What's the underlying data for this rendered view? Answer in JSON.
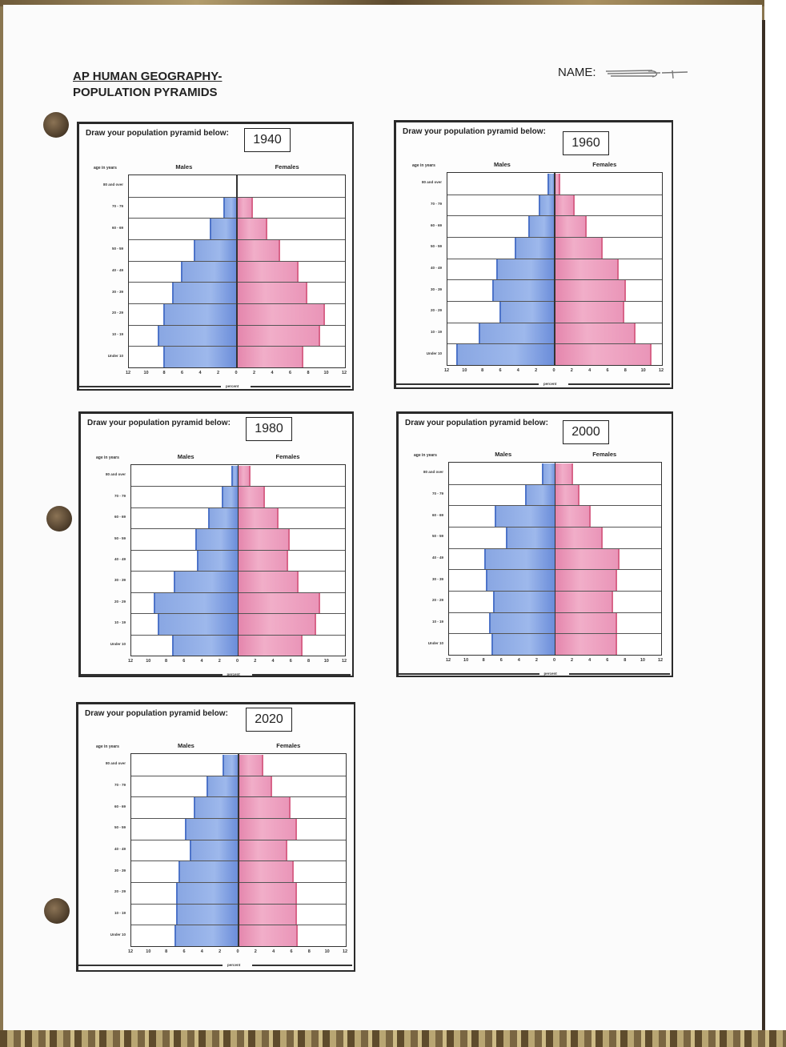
{
  "worksheet": {
    "title_line1": "AP HUMAN GEOGRAPHY-",
    "title_line2": "POPULATION PYRAMIDS",
    "name_label": "NAME:"
  },
  "panel_common": {
    "prompt": "Draw your population pyramid below:",
    "age_header": "age in years",
    "males_label": "Males",
    "females_label": "Females",
    "x_label": "percent",
    "age_groups": [
      "80 and over",
      "70 - 79",
      "60 - 69",
      "50 - 59",
      "40 - 49",
      "30 - 39",
      "20 - 29",
      "10 - 19",
      "Under 10"
    ],
    "x_ticks_left": [
      "12",
      "10",
      "8",
      "6",
      "4",
      "2"
    ],
    "x_ticks_right": [
      "0",
      "2",
      "4",
      "6",
      "8",
      "10",
      "12"
    ]
  },
  "colors": {
    "males": "#4a73cc",
    "females": "#e884ad"
  },
  "chart_data": [
    {
      "type": "bar",
      "subtype": "population_pyramid",
      "title": "1940",
      "categories": [
        "80 and over",
        "70 - 79",
        "60 - 69",
        "50 - 59",
        "40 - 49",
        "30 - 39",
        "20 - 29",
        "10 - 19",
        "Under 10"
      ],
      "series": [
        {
          "name": "Males",
          "values": [
            0,
            1.5,
            3.0,
            4.8,
            6.2,
            7.2,
            8.2,
            8.8,
            8.2
          ]
        },
        {
          "name": "Females",
          "values": [
            0,
            1.8,
            3.4,
            4.8,
            6.8,
            7.8,
            9.8,
            9.2,
            7.4
          ]
        }
      ],
      "xlabel": "percent",
      "ylabel": "age in years",
      "xlim": [
        -12,
        12
      ],
      "grid": "horizontal",
      "legend": "Males left, Females right"
    },
    {
      "type": "bar",
      "subtype": "population_pyramid",
      "title": "1960",
      "categories": [
        "80 and over",
        "70 - 79",
        "60 - 69",
        "50 - 59",
        "40 - 49",
        "30 - 39",
        "20 - 29",
        "10 - 19",
        "Under 10"
      ],
      "series": [
        {
          "name": "Males",
          "values": [
            0.8,
            1.8,
            3.0,
            4.5,
            6.5,
            7.0,
            6.2,
            8.5,
            11.0
          ]
        },
        {
          "name": "Females",
          "values": [
            0.6,
            2.2,
            3.6,
            5.4,
            7.2,
            8.0,
            7.8,
            9.0,
            10.8
          ]
        }
      ],
      "xlabel": "percent",
      "ylabel": "age in years",
      "xlim": [
        -12,
        12
      ],
      "grid": "horizontal",
      "legend": "Males left, Females right"
    },
    {
      "type": "bar",
      "subtype": "population_pyramid",
      "title": "1980",
      "categories": [
        "80 and over",
        "70 - 79",
        "60 - 69",
        "50 - 59",
        "40 - 49",
        "30 - 39",
        "20 - 29",
        "10 - 19",
        "Under 10"
      ],
      "series": [
        {
          "name": "Males",
          "values": [
            0.8,
            1.8,
            3.4,
            4.8,
            4.6,
            7.2,
            9.5,
            9.0,
            7.4
          ]
        },
        {
          "name": "Females",
          "values": [
            1.4,
            3.0,
            4.5,
            5.8,
            5.6,
            6.8,
            9.2,
            8.8,
            7.2
          ]
        }
      ],
      "xlabel": "percent",
      "ylabel": "age in years",
      "xlim": [
        -12,
        12
      ],
      "grid": "horizontal",
      "legend": "Males left, Females right"
    },
    {
      "type": "bar",
      "subtype": "population_pyramid",
      "title": "2000",
      "categories": [
        "80 and over",
        "70 - 79",
        "60 - 69",
        "50 - 59",
        "40 - 49",
        "30 - 39",
        "20 - 29",
        "10 - 19",
        "Under 10"
      ],
      "series": [
        {
          "name": "Males",
          "values": [
            1.5,
            3.4,
            6.8,
            5.6,
            8.0,
            7.8,
            7.0,
            7.5,
            7.2
          ]
        },
        {
          "name": "Females",
          "values": [
            2.0,
            2.8,
            4.0,
            5.4,
            7.3,
            7.0,
            6.6,
            7.0,
            7.0
          ]
        }
      ],
      "xlabel": "percent",
      "ylabel": "age in years",
      "xlim": [
        -12,
        12
      ],
      "grid": "horizontal",
      "legend": "Males left, Females right"
    },
    {
      "type": "bar",
      "subtype": "population_pyramid",
      "title": "2020",
      "categories": [
        "80 and over",
        "70 - 79",
        "60 - 69",
        "50 - 59",
        "40 - 49",
        "30 - 39",
        "20 - 29",
        "10 - 19",
        "Under 10"
      ],
      "series": [
        {
          "name": "Males",
          "values": [
            1.8,
            3.6,
            5.0,
            6.0,
            5.5,
            6.7,
            7.0,
            7.0,
            7.2
          ]
        },
        {
          "name": "Females",
          "values": [
            2.8,
            3.8,
            5.8,
            6.5,
            5.5,
            6.2,
            6.5,
            6.5,
            6.6
          ]
        }
      ],
      "xlabel": "percent",
      "ylabel": "age in years",
      "xlim": [
        -12,
        12
      ],
      "grid": "horizontal",
      "legend": "Males left, Females right"
    }
  ]
}
